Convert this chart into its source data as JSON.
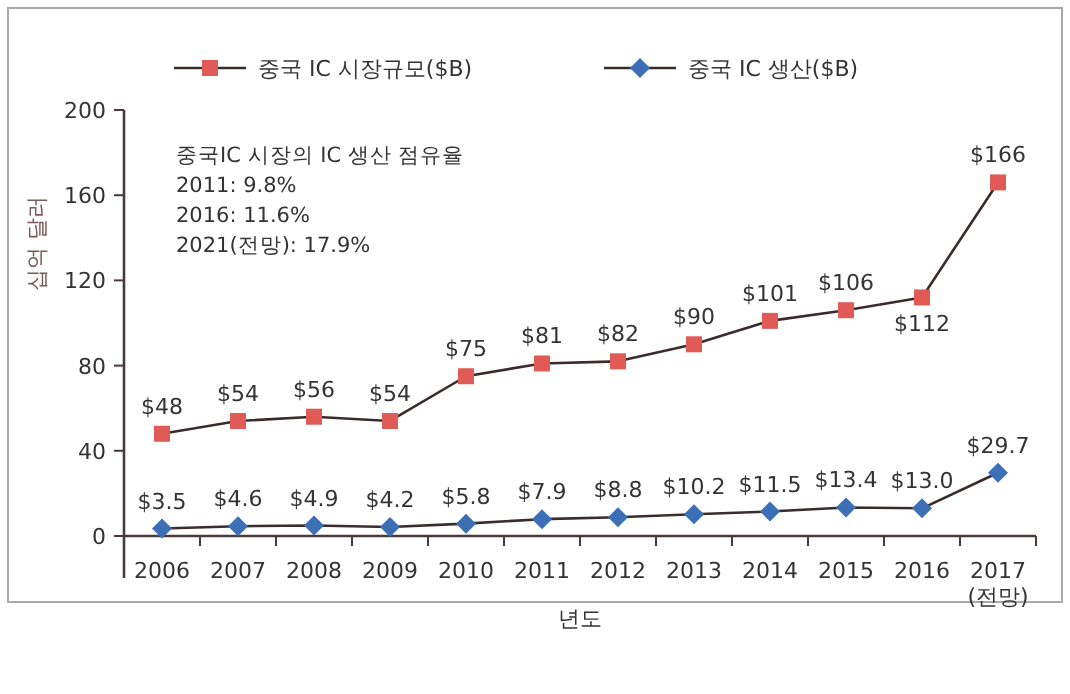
{
  "chart_data": {
    "type": "line",
    "xlabel": "년도",
    "ylabel": "십억 달러",
    "categories": [
      "2006",
      "2007",
      "2008",
      "2009",
      "2010",
      "2011",
      "2012",
      "2013",
      "2014",
      "2015",
      "2016",
      "2017\n(전망)"
    ],
    "series": [
      {
        "name": "중국 IC 시장규모($B)",
        "color": "#e05a56",
        "marker": "square",
        "values": [
          48,
          54,
          56,
          54,
          75,
          81,
          82,
          90,
          101,
          106,
          112,
          166
        ],
        "value_labels": [
          "$48",
          "$54",
          "$56",
          "$54",
          "$75",
          "$81",
          "$82",
          "$90",
          "$101",
          "$106",
          "$112",
          "$166"
        ]
      },
      {
        "name": "중국 IC 생산($B)",
        "color": "#3d6fb6",
        "marker": "diamond",
        "values": [
          3.5,
          4.6,
          4.9,
          4.2,
          5.8,
          7.9,
          8.8,
          10.2,
          11.5,
          13.4,
          13.0,
          29.7
        ],
        "value_labels": [
          "$3.5",
          "$4.6",
          "$4.9",
          "$4.2",
          "$5.8",
          "$7.9",
          "$8.8",
          "$10.2",
          "$11.5",
          "$13.4",
          "$13.0",
          "$29.7"
        ]
      }
    ],
    "ylim": [
      0,
      200
    ],
    "yticks": [
      0,
      40,
      80,
      120,
      160,
      200
    ],
    "grid": false,
    "legend": "top",
    "annotations": [
      "중국IC 시장의 IC 생산 점유율\n2011: 9.8%\n2016: 11.6%\n2021(전망): 17.9%"
    ]
  }
}
